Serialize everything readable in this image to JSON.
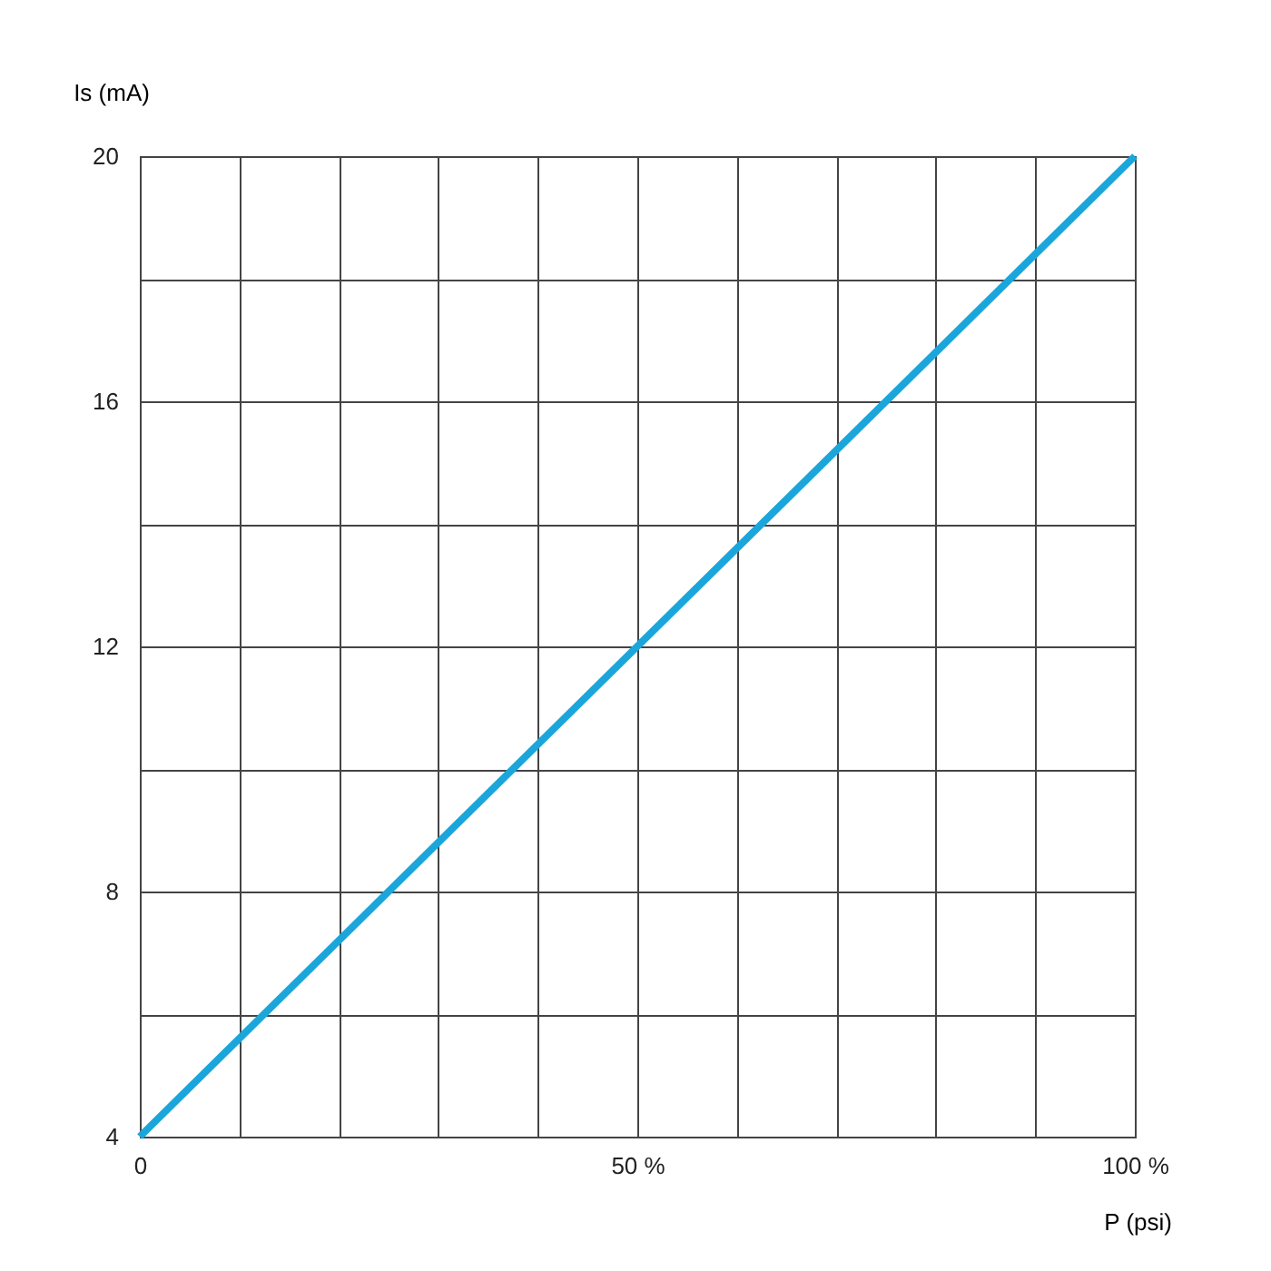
{
  "chart_data": {
    "type": "line",
    "xlabel": "P (psi)",
    "ylabel": "Is (mA)",
    "x": [
      0,
      100
    ],
    "series": [
      {
        "color": "#1ba6db",
        "values": [
          4,
          20
        ]
      }
    ],
    "xlim": [
      0,
      100
    ],
    "ylim": [
      4,
      20
    ],
    "xticks": [
      0,
      {
        "value": 10,
        "label": null
      },
      {
        "value": 20,
        "label": null
      },
      {
        "value": 30,
        "label": null
      },
      {
        "value": 40,
        "label": null
      },
      {
        "value": 50,
        "label": "50 %"
      },
      {
        "value": 60,
        "label": null
      },
      {
        "value": 70,
        "label": null
      },
      {
        "value": 80,
        "label": null
      },
      {
        "value": 90,
        "label": null
      },
      {
        "value": 100,
        "label": "100 %"
      }
    ],
    "yticks": [
      4,
      {
        "value": 6,
        "label": null
      },
      8,
      {
        "value": 10,
        "label": null
      },
      12,
      {
        "value": 14,
        "label": null
      },
      16,
      {
        "value": 18,
        "label": null
      },
      20
    ],
    "grid": true,
    "marker": "none",
    "line_style": "solid"
  }
}
